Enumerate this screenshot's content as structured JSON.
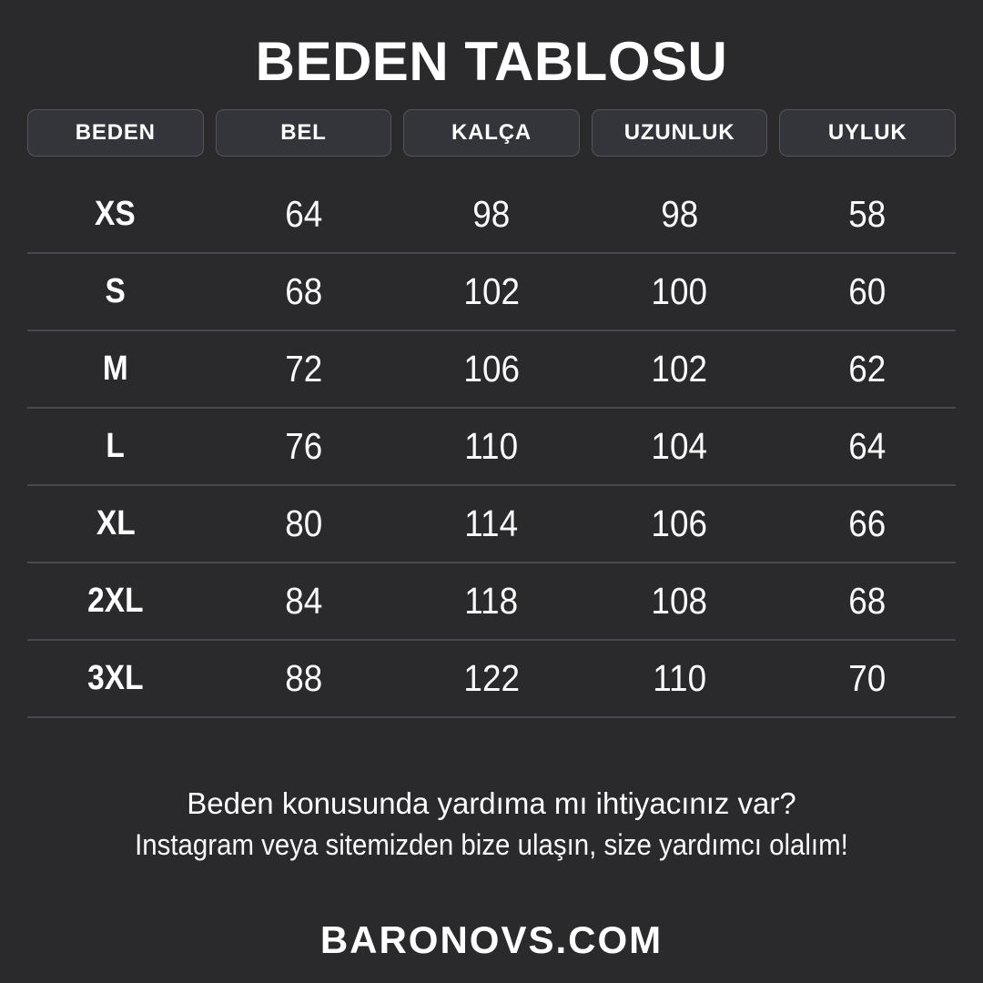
{
  "chart_data": {
    "type": "table",
    "title": "BEDEN TABLOSU",
    "columns": [
      "BEDEN",
      "BEL",
      "KALÇA",
      "UZUNLUK",
      "UYLUK"
    ],
    "rows": [
      {
        "size": "XS",
        "values": [
          64,
          98,
          98,
          58
        ]
      },
      {
        "size": "S",
        "values": [
          68,
          102,
          100,
          60
        ]
      },
      {
        "size": "M",
        "values": [
          72,
          106,
          102,
          62
        ]
      },
      {
        "size": "L",
        "values": [
          76,
          110,
          104,
          64
        ]
      },
      {
        "size": "XL",
        "values": [
          80,
          114,
          106,
          66
        ]
      },
      {
        "size": "2XL",
        "values": [
          84,
          118,
          108,
          68
        ]
      },
      {
        "size": "3XL",
        "values": [
          88,
          122,
          110,
          70
        ]
      }
    ],
    "layout": {
      "legend": "none",
      "grid": "horizontal-row-separators"
    }
  },
  "footer": {
    "line1": "Beden konusunda yardıma mı ihtiyacınız var?",
    "line2": "Instagram veya sitemizden bize ulaşın, size yardımcı olalım!"
  },
  "website": "BARONOVS.COM",
  "colors": {
    "background": "#2a2a2c",
    "header_box_fill": "#34353a",
    "header_box_border": "#54555b",
    "row_separator": "#48494e",
    "text": "#ffffff"
  }
}
